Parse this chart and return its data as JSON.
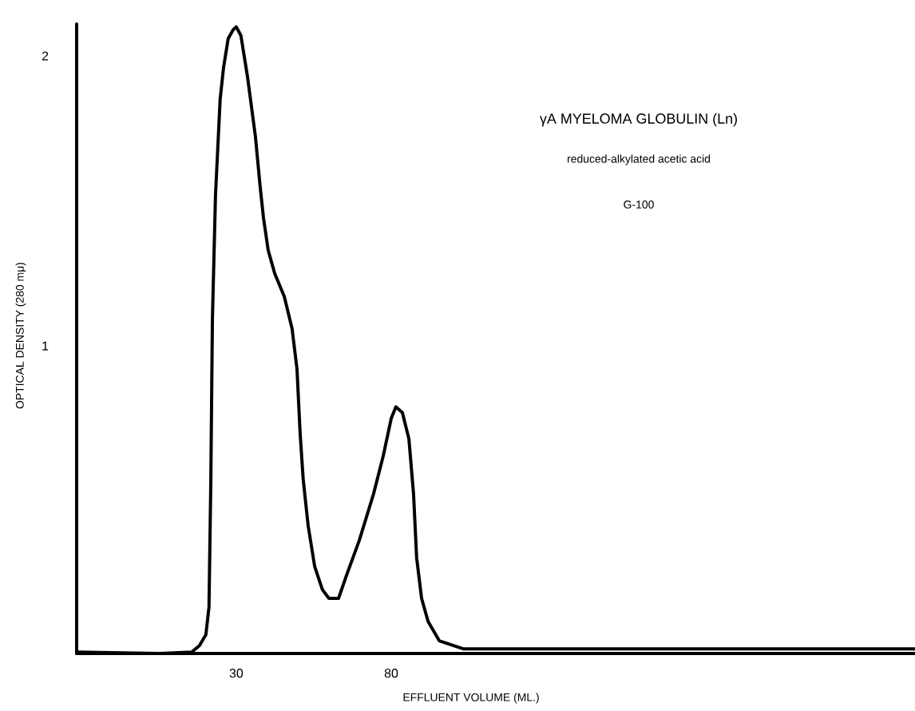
{
  "chart_data": {
    "type": "line",
    "title": "γA MYELOMA GLOBULIN (Ln)",
    "subtitle": "reduced-alkylated      acetic acid",
    "annotations": [
      "G-100"
    ],
    "xlabel": "EFFLUENT VOLUME (ML.)",
    "ylabel": "OPTICAL DENSITY (280 mμ)",
    "xlim": [
      -21.5,
      249
    ],
    "ylim": [
      -0.06,
      2.11
    ],
    "xticks": [
      30,
      80
    ],
    "yticks": [
      1,
      2
    ],
    "grid": false,
    "marker": "none",
    "line_style": "solid",
    "series": [
      {
        "color": "#000000",
        "x": [
          -21.5,
          5.3,
          15.6,
          18.1,
          20.2,
          21.2,
          21.8,
          22.3,
          23.3,
          24.8,
          25.9,
          27.4,
          29.0,
          30,
          31.5,
          33.6,
          36.2,
          37.7,
          38.8,
          40.3,
          42.4,
          45.5,
          48.0,
          49.6,
          50.6,
          51.6,
          53.2,
          55.3,
          57.8,
          59.9,
          63.0,
          65.6,
          69.7,
          74.3,
          77.4,
          80.0,
          81.5,
          83.6,
          85.7,
          87.2,
          88.2,
          89.8,
          91.9,
          95.5,
          103.2,
          118.7,
          159.9,
          211.4,
          249
        ],
        "values": [
          -0.055,
          -0.06,
          -0.055,
          -0.033,
          0.005,
          0.1,
          0.54,
          1.09,
          1.52,
          1.85,
          1.96,
          2.06,
          2.09,
          2.1,
          2.07,
          1.93,
          1.72,
          1.55,
          1.44,
          1.33,
          1.25,
          1.17,
          1.06,
          0.92,
          0.7,
          0.54,
          0.38,
          0.24,
          0.16,
          0.13,
          0.13,
          0.21,
          0.33,
          0.49,
          0.62,
          0.75,
          0.79,
          0.77,
          0.68,
          0.49,
          0.27,
          0.13,
          0.05,
          -0.016,
          -0.044,
          -0.044,
          -0.044,
          -0.044,
          -0.044
        ]
      }
    ]
  }
}
